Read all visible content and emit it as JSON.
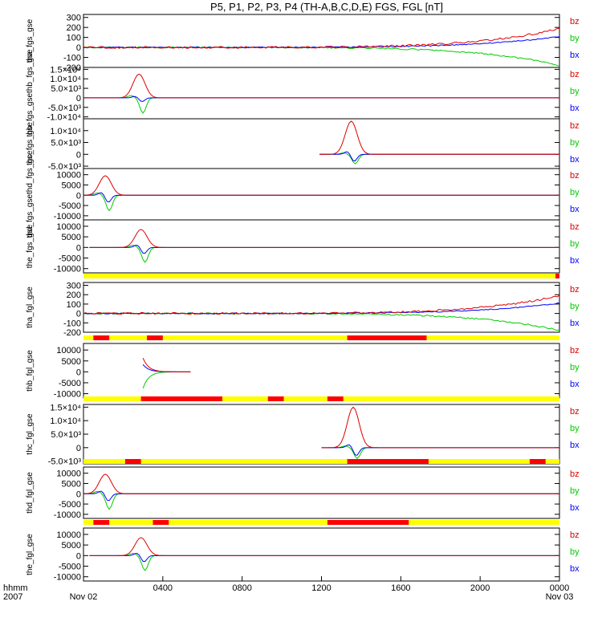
{
  "title": "P5, P1, P2, P3, P4 (TH-A,B,C,D,E) FGS, FGL [nT]",
  "colors": {
    "bx": "#0000ff",
    "by": "#00cc00",
    "bz": "#dd0000",
    "bar_ok": "#ffff00",
    "bar_flag": "#ff0000"
  },
  "x_axis": {
    "ticks": [
      {
        "hour": 0,
        "label": "hhmm",
        "sub": "Nov 02"
      },
      {
        "hour": 4,
        "label": "0400",
        "sub": ""
      },
      {
        "hour": 8,
        "label": "0800",
        "sub": ""
      },
      {
        "hour": 12,
        "label": "1200",
        "sub": ""
      },
      {
        "hour": 16,
        "label": "1600",
        "sub": ""
      },
      {
        "hour": 20,
        "label": "2000",
        "sub": ""
      },
      {
        "hour": 24,
        "label": "0000",
        "sub": "Nov 03"
      }
    ],
    "year": "2007",
    "corner_label": "hhmm"
  },
  "chart_data": [
    {
      "type": "line",
      "ylabel": "tha_fgs_gse",
      "ylim": [
        -200,
        330
      ],
      "yticks": [
        "300",
        "200",
        "100",
        "0",
        "-100",
        "-200"
      ],
      "ytick_values": [
        300,
        200,
        100,
        0,
        -100,
        -200
      ],
      "series_names": [
        "bz",
        "by",
        "bx"
      ],
      "event": {
        "start_hour": 0,
        "end_hour": 24,
        "kind": "growth",
        "bz_end": 190,
        "by_end": -180,
        "bx_end": 110
      }
    },
    {
      "type": "line",
      "ylabel": "thb_fgs_gsethb_fgs_gse",
      "ylim": [
        -11000,
        16000
      ],
      "yticks": [
        "1.5×10⁴",
        "1.0×10⁴",
        "5.0×10³",
        "0",
        "-5.0×10³",
        "-1.0×10⁴"
      ],
      "ytick_values": [
        15000,
        10000,
        5000,
        0,
        -5000,
        -10000
      ],
      "series_names": [
        "bz",
        "by",
        "bx"
      ],
      "event": {
        "start_hour": 0,
        "end_hour": 5.4,
        "peak_hour": 2.8,
        "bz_peak": 12500,
        "by_min": -8000,
        "bx_min": -2000
      }
    },
    {
      "type": "line",
      "ylabel": "thc_fgs_gse",
      "ylim": [
        -6000,
        15000
      ],
      "yticks": [
        "1.0×10⁴",
        "5.0×10³",
        "0",
        "-5.0×10³"
      ],
      "ytick_values": [
        10000,
        5000,
        0,
        -5000
      ],
      "series_names": [
        "bz",
        "by",
        "bx"
      ],
      "event": {
        "start_hour": 11.8,
        "end_hour": 15.6,
        "peak_hour": 13.5,
        "bz_peak": 14000,
        "by_min": -4000,
        "bx_min": -3000
      }
    },
    {
      "type": "line",
      "ylabel": "thd_fgs_gsethd_fgs_gse",
      "ylim": [
        -12000,
        13000
      ],
      "yticks": [
        "10000",
        "5000",
        "0",
        "-5000",
        "-10000"
      ],
      "ytick_values": [
        10000,
        5000,
        0,
        -5000,
        -10000
      ],
      "series_names": [
        "bz",
        "by",
        "bx"
      ],
      "event": {
        "start_hour": 0,
        "end_hour": 3.0,
        "peak_hour": 1.1,
        "bz_peak": 9500,
        "by_min": -7500,
        "bx_min": -3500
      }
    },
    {
      "type": "line",
      "ylabel": "the_fgs_gse",
      "ylim": [
        -12000,
        13000
      ],
      "yticks": [
        "10000",
        "5000",
        "0",
        "-5000",
        "-10000"
      ],
      "ytick_values": [
        10000,
        5000,
        0,
        -5000,
        -10000
      ],
      "series_names": [
        "bz",
        "by",
        "bx"
      ],
      "event": {
        "start_hour": 0.3,
        "end_hour": 5.0,
        "peak_hour": 2.9,
        "bz_peak": 8500,
        "by_min": -7000,
        "bx_min": -3000
      }
    },
    {
      "type": "line",
      "ylabel": "tha_fgl_gse",
      "ylim": [
        -200,
        330
      ],
      "yticks": [
        "300",
        "200",
        "100",
        "0",
        "-100",
        "-200"
      ],
      "ytick_values": [
        300,
        200,
        100,
        0,
        -100,
        -200
      ],
      "series_names": [
        "bz",
        "by",
        "bx"
      ],
      "event": {
        "start_hour": 0,
        "end_hour": 24,
        "kind": "growth",
        "bz_end": 190,
        "by_end": -180,
        "bx_end": 110
      }
    },
    {
      "type": "line",
      "ylabel": "thb_fgl_gse",
      "ylim": [
        -12000,
        13000
      ],
      "yticks": [
        "10000",
        "5000",
        "0",
        "-5000",
        "-10000"
      ],
      "ytick_values": [
        10000,
        5000,
        0,
        -5000,
        -10000
      ],
      "series_names": [
        "bz",
        "by",
        "bx"
      ],
      "event": {
        "start_hour": 2.95,
        "end_hour": 5.4,
        "kind": "decay",
        "bz_start": 7500,
        "by_start": -9000,
        "bx_start": 4000
      }
    },
    {
      "type": "line",
      "ylabel": "thc_fgl_gse",
      "ylim": [
        -6000,
        16000
      ],
      "yticks": [
        "1.5×10⁴",
        "1.0×10⁴",
        "5.0×10³",
        "0",
        "-5.0×10³"
      ],
      "ytick_values": [
        15000,
        10000,
        5000,
        0,
        -5000
      ],
      "series_names": [
        "bz",
        "by",
        "bx"
      ],
      "event": {
        "start_hour": 12.0,
        "end_hour": 17.9,
        "peak_hour": 13.6,
        "bz_peak": 15000,
        "by_min": -4000,
        "bx_min": -3000
      }
    },
    {
      "type": "line",
      "ylabel": "thd_fgl_gse",
      "ylim": [
        -12000,
        13000
      ],
      "yticks": [
        "10000",
        "5000",
        "0",
        "-5000",
        "-10000"
      ],
      "ytick_values": [
        10000,
        5000,
        0,
        -5000,
        -10000
      ],
      "series_names": [
        "bz",
        "by",
        "bx"
      ],
      "event": {
        "start_hour": 0,
        "end_hour": 2.6,
        "peak_hour": 1.1,
        "bz_peak": 9500,
        "by_min": -7500,
        "bx_min": -3500
      }
    },
    {
      "type": "line",
      "ylabel": "the_fgl_gse",
      "ylim": [
        -12000,
        13000
      ],
      "yticks": [
        "10000",
        "5000",
        "0",
        "-5000",
        "-10000"
      ],
      "ytick_values": [
        10000,
        5000,
        0,
        -5000,
        -10000
      ],
      "series_names": [
        "bz",
        "by",
        "bx"
      ],
      "event": {
        "start_hour": 0.3,
        "end_hour": 5.0,
        "peak_hour": 2.9,
        "bz_peak": 8500,
        "by_min": -7000,
        "bx_min": -3000
      }
    }
  ],
  "flag_bars": [
    {
      "after_panel": 4,
      "segments": [
        [
          23.8,
          24.0
        ]
      ]
    },
    {
      "after_panel": 5,
      "segments": [
        [
          0.5,
          1.3
        ],
        [
          3.2,
          4.0
        ],
        [
          13.3,
          17.3
        ]
      ]
    },
    {
      "after_panel": 6,
      "segments": [
        [
          2.9,
          7.0
        ],
        [
          9.3,
          10.1
        ],
        [
          12.3,
          13.1
        ]
      ]
    },
    {
      "after_panel": 7,
      "segments": [
        [
          2.1,
          2.9
        ],
        [
          13.3,
          17.4
        ],
        [
          22.5,
          23.3
        ]
      ]
    },
    {
      "after_panel": 8,
      "segments": [
        [
          0.5,
          1.3
        ],
        [
          3.5,
          4.3
        ],
        [
          12.3,
          16.4
        ]
      ]
    }
  ]
}
